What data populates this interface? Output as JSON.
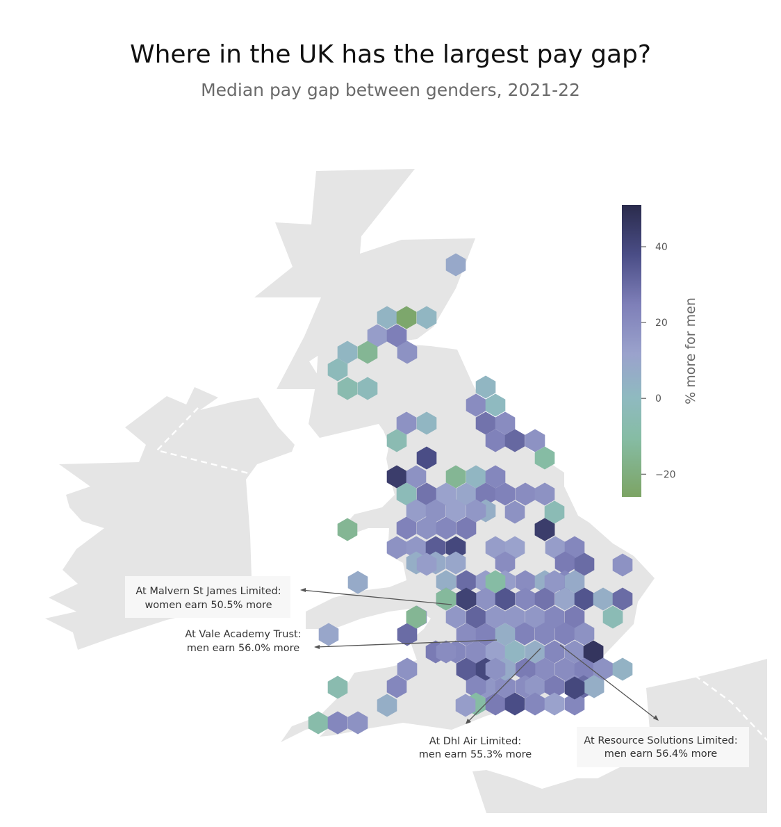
{
  "header": {
    "title": "Where in the UK has the largest pay gap?",
    "subtitle": "Median pay gap between genders, 2021-22"
  },
  "chart_data": {
    "type": "heatmap",
    "subtype": "hexbin map of the UK",
    "title": "Where in the UK has the largest pay gap?",
    "subtitle": "Median pay gap between genders, 2021-22",
    "colorbar": {
      "label": "% more for men",
      "range": [
        -26,
        51
      ],
      "ticks": [
        40,
        20,
        0,
        -20
      ],
      "tick_labels": [
        "40",
        "20",
        "0",
        "−20"
      ],
      "colors": {
        "-26": "#7ca464",
        "-10": "#86bca4",
        "0": "#8fbac0",
        "12": "#9aa2cc",
        "25": "#7e7fb8",
        "38": "#4a4d86",
        "51": "#2a2b4c"
      }
    },
    "annotations": [
      {
        "line1": "At Malvern St James Limited:",
        "line2": "women earn 50.5% more",
        "value": -50.5
      },
      {
        "line1": "At Vale Academy Trust:",
        "line2": "men earn 56.0% more",
        "value": 56.0
      },
      {
        "line1": "At Dhl Air Limited:",
        "line2": "men earn 55.3% more",
        "value": 55.3
      },
      {
        "line1": "At Resource Solutions Limited:",
        "line2": "men earn 56.4% more",
        "value": 56.4
      }
    ],
    "hex_values": [
      9,
      3,
      -24,
      2,
      14,
      25,
      2,
      -14,
      18,
      -2,
      -6,
      -2,
      2,
      20,
      0,
      18,
      2,
      28,
      20,
      -5,
      24,
      31,
      18,
      38,
      -10,
      44,
      18,
      -14,
      2,
      22,
      -3,
      28,
      12,
      10,
      26,
      24,
      20,
      18,
      -14,
      14,
      6,
      18,
      18,
      12,
      16,
      18,
      22,
      26,
      48,
      -4,
      18,
      16,
      34,
      40,
      14,
      12,
      24,
      6,
      8,
      10,
      20,
      44,
      14,
      22,
      26,
      14,
      6,
      30,
      14,
      14,
      20,
      6,
      22,
      30,
      18,
      28,
      26,
      18,
      36,
      22,
      8,
      28,
      10,
      36,
      -10,
      16,
      8,
      6,
      30,
      -12,
      16,
      42,
      32,
      16,
      16,
      22,
      26,
      16,
      24,
      22,
      -4,
      24,
      18,
      38,
      16,
      -22,
      10,
      30,
      20,
      24,
      6,
      26,
      22,
      20,
      12,
      2,
      6,
      -2,
      22,
      18,
      20,
      26,
      20,
      22,
      20,
      20,
      20,
      16,
      20,
      20,
      47,
      18,
      22,
      34,
      40,
      8,
      16,
      26,
      20,
      24,
      18,
      4,
      -6,
      22,
      -10,
      26,
      38,
      22,
      12,
      22,
      8,
      6,
      14,
      30,
      6,
      -8,
      22,
      18,
      -14,
      40,
      18
    ]
  }
}
